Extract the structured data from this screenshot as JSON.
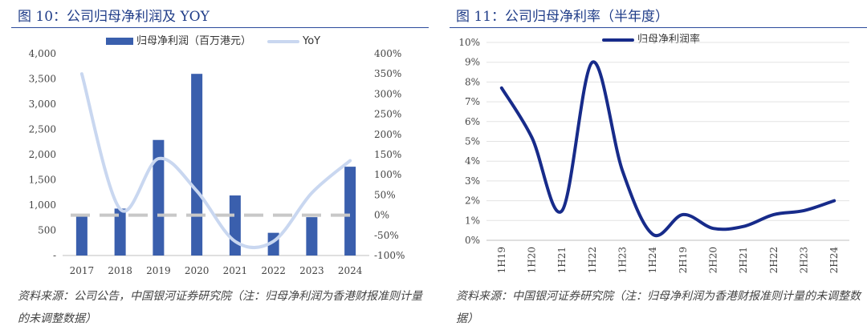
{
  "left": {
    "title": "图 10：公司归母净利润及 YOY",
    "source": "资料来源：公司公告，中国银河证券研究院（注：归母净利润为香港财报准则计量的未调整数据）",
    "legend": {
      "bar": "归母净利润（百万港元）",
      "line": "YoY"
    }
  },
  "right": {
    "title": "图 11：公司归母净利率（半年度）",
    "source": "资料来源：中国银河证券研究院（注：归母净利润为香港财报准则计量的未调整数据）",
    "legend": {
      "line": "归母净利润率"
    }
  },
  "colors": {
    "bar": "#3a5fad",
    "yoy": "#c9d7f0",
    "zero_dash": "#c8c8c8",
    "margin_line": "#172b8a",
    "title": "#1f3c88"
  },
  "chart_data": [
    {
      "type": "bar",
      "categories": [
        "2017",
        "2018",
        "2019",
        "2020",
        "2021",
        "2022",
        "2023",
        "2024"
      ],
      "series": [
        {
          "name": "归母净利润（百万港元）",
          "type": "bar",
          "axis": "left",
          "values": [
            820,
            930,
            2290,
            3600,
            1190,
            450,
            760,
            1760
          ]
        },
        {
          "name": "YoY",
          "type": "line",
          "axis": "right",
          "values": [
            3.5,
            0.15,
            1.4,
            0.6,
            -0.65,
            -0.65,
            0.55,
            1.35
          ]
        }
      ],
      "ylim": [
        0,
        4000
      ],
      "y_ticks": [
        "-",
        "500",
        "1,000",
        "1,500",
        "2,000",
        "2,500",
        "3,000",
        "3,500",
        "4,000"
      ],
      "y2lim": [
        -1,
        4
      ],
      "y2_ticks": [
        "-100%",
        "-50%",
        "0%",
        "50%",
        "100%",
        "150%",
        "200%",
        "250%",
        "300%",
        "350%",
        "400%"
      ],
      "zero_reference_dashed": true,
      "legend_position": "top"
    },
    {
      "type": "line",
      "categories": [
        "1H19",
        "1H20",
        "1H21",
        "1H22",
        "1H23",
        "1H24",
        "2H19",
        "2H20",
        "2H21",
        "2H22",
        "2H23",
        "2H24"
      ],
      "series": [
        {
          "name": "归母净利润率",
          "values": [
            0.077,
            0.052,
            0.015,
            0.09,
            0.035,
            0.003,
            0.013,
            0.006,
            0.007,
            0.013,
            0.015,
            0.02
          ]
        }
      ],
      "ylim": [
        0,
        0.1
      ],
      "y_ticks": [
        "0%",
        "1%",
        "2%",
        "3%",
        "4%",
        "5%",
        "6%",
        "7%",
        "8%",
        "9%",
        "10%"
      ],
      "x_label_rotation": "vertical",
      "legend_position": "top-left"
    }
  ]
}
